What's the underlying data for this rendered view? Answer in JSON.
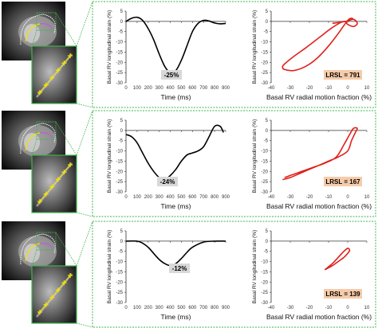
{
  "colors": {
    "panel_border": "#3cb44b",
    "strain_line": "#000000",
    "loop_line": "#e0201b",
    "strain_badge": "#d8d8d8",
    "lrsl_badge": "#f6cba9"
  },
  "rows": [
    {
      "mri": {
        "contour": "four-chamber",
        "zoom_markers": 6
      },
      "strain": {
        "badge": "-25%"
      },
      "lrsl": {
        "badge": "LRSL = 791"
      }
    },
    {
      "mri": {
        "contour": "four-chamber",
        "zoom_markers": 6
      },
      "strain": {
        "badge": "-24%"
      },
      "lrsl": {
        "badge": "LRSL = 167"
      }
    },
    {
      "mri": {
        "contour": "four-chamber",
        "zoom_markers": 6
      },
      "strain": {
        "badge": "-12%"
      },
      "lrsl": {
        "badge": "LRSL = 139"
      }
    }
  ],
  "chart_data": [
    {
      "type": "line",
      "xlabel": "Time (ms)",
      "ylabel": "Basal RV longitudinal strain (%)",
      "xlim": [
        0,
        900
      ],
      "ylim": [
        -30,
        5
      ],
      "xticks": [
        0,
        100,
        200,
        300,
        400,
        500,
        600,
        700,
        800,
        900
      ],
      "yticks": [
        5,
        0,
        -5,
        -10,
        -15,
        -20,
        -25,
        -30
      ],
      "x": [
        0,
        50,
        100,
        150,
        200,
        250,
        300,
        350,
        400,
        450,
        500,
        550,
        600,
        650,
        700,
        750,
        800,
        850,
        900
      ],
      "y": [
        0,
        1.5,
        2,
        0.5,
        -3.5,
        -9,
        -16,
        -22,
        -25,
        -24,
        -19,
        -12,
        -5,
        -1,
        0.5,
        0.2,
        -0.8,
        -1.2,
        -1
      ],
      "annotations": [
        "-25%"
      ]
    },
    {
      "type": "line",
      "xlabel": "Basal RV radial motion fraction (%)",
      "ylabel": "Basal RV longitudinal strain (%)",
      "xlim": [
        -40,
        10
      ],
      "ylim": [
        -30,
        5
      ],
      "xticks": [
        -40,
        -30,
        -20,
        -10,
        0,
        10
      ],
      "yticks": [
        5,
        0,
        -5,
        -10,
        -15,
        -20,
        -25,
        -30
      ],
      "x": [
        -8,
        -1,
        3,
        5,
        3,
        0,
        -2,
        -8,
        -15,
        -22,
        -28,
        -32,
        -34,
        -33,
        -28,
        -22,
        -16,
        -10,
        -5,
        0,
        2,
        3
      ],
      "y": [
        -1,
        0,
        1,
        -1,
        -2.5,
        -1.5,
        0,
        -3,
        -8,
        -13,
        -17,
        -20,
        -22,
        -23.5,
        -24,
        -22,
        -18,
        -12,
        -6,
        0.5,
        1.5,
        1
      ],
      "annotations": [
        "LRSL = 791"
      ]
    },
    {
      "type": "line",
      "xlabel": "Time (ms)",
      "ylabel": "Basal RV longitudinal strain (%)",
      "xlim": [
        0,
        900
      ],
      "ylim": [
        -30,
        5
      ],
      "xticks": [
        0,
        100,
        200,
        300,
        400,
        500,
        600,
        700,
        800,
        900
      ],
      "yticks": [
        5,
        0,
        -5,
        -10,
        -15,
        -20,
        -25,
        -30
      ],
      "x": [
        0,
        50,
        100,
        150,
        200,
        250,
        300,
        350,
        400,
        450,
        500,
        550,
        600,
        650,
        700,
        750,
        800,
        850,
        880
      ],
      "y": [
        -2,
        -3,
        -6,
        -11,
        -16,
        -20,
        -23,
        -24,
        -22,
        -19,
        -15,
        -12,
        -11,
        -10,
        -8,
        -3,
        2,
        2,
        -1
      ],
      "annotations": [
        "-24%"
      ]
    },
    {
      "type": "line",
      "xlabel": "Basal RV radial motion fraction (%)",
      "ylabel": "Basal RV longitudinal strain (%)",
      "xlim": [
        -40,
        10
      ],
      "ylim": [
        -30,
        5
      ],
      "xticks": [
        -40,
        -30,
        -20,
        -10,
        0,
        10
      ],
      "yticks": [
        5,
        0,
        -5,
        -10,
        -15,
        -20,
        -25,
        -30
      ],
      "x": [
        -34,
        -30,
        -25,
        -20,
        -15,
        -10,
        -5,
        0,
        2,
        4,
        5,
        3,
        1,
        -2,
        -6,
        -12,
        -18,
        -24,
        -30,
        -33
      ],
      "y": [
        -24,
        -23,
        -21,
        -19,
        -17,
        -15,
        -13,
        -10,
        -5,
        -1,
        1,
        1,
        -2,
        -7,
        -13,
        -16,
        -18,
        -20,
        -22,
        -23
      ],
      "annotations": [
        "LRSL = 167"
      ]
    },
    {
      "type": "line",
      "xlabel": "Time (ms)",
      "ylabel": "Basal RV longitudinal strain (%)",
      "xlim": [
        0,
        900
      ],
      "ylim": [
        -30,
        5
      ],
      "xticks": [
        0,
        100,
        200,
        300,
        400,
        500,
        600,
        700,
        800,
        900
      ],
      "yticks": [
        5,
        0,
        -5,
        -10,
        -15,
        -20,
        -25,
        -30
      ],
      "x": [
        0,
        100,
        150,
        200,
        250,
        300,
        350,
        400,
        450,
        500,
        550,
        600,
        700,
        800,
        900
      ],
      "y": [
        0,
        0,
        -1,
        -3,
        -6,
        -9,
        -11,
        -12,
        -11,
        -8.5,
        -5.5,
        -3,
        -0.5,
        0,
        0
      ],
      "annotations": [
        "-12%"
      ]
    },
    {
      "type": "line",
      "xlabel": "Basal RV radial motion fraction (%)",
      "ylabel": "Basal RV longitudinal strain (%)",
      "xlim": [
        -40,
        10
      ],
      "ylim": [
        -30,
        5
      ],
      "xticks": [
        -40,
        -30,
        -20,
        -10,
        0,
        10
      ],
      "yticks": [
        5,
        0,
        -5,
        -10,
        -15,
        -20,
        -25,
        -30
      ],
      "x": [
        -12,
        -8,
        -5,
        -2,
        0,
        1,
        0,
        -2,
        -5,
        -8,
        -11,
        -12
      ],
      "y": [
        -14,
        -11,
        -8,
        -5,
        -3.5,
        -4.5,
        -6,
        -8,
        -10,
        -12,
        -13.5,
        -14
      ],
      "annotations": [
        "LRSL = 139"
      ]
    }
  ]
}
